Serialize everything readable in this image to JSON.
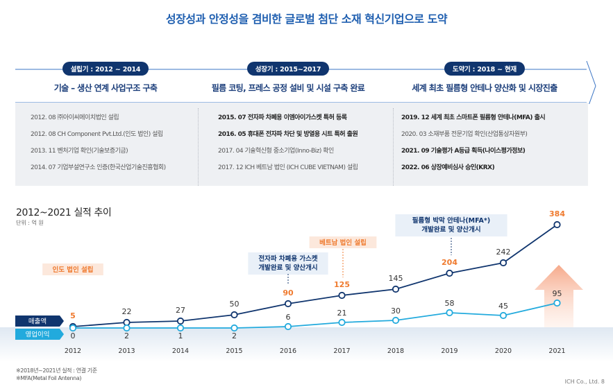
{
  "page_title": "성장성과 안정성을 겸비한 글로벌 첨단 소재 혁신기업으로 도약",
  "phases": [
    {
      "badge": "설립기 : 2012 ~ 2014",
      "subtitle": "기술 – 생산 연계 사업구조 구축",
      "items": [
        {
          "text": "2012. 08 ㈜아이씨에이치법인 설립",
          "bold": false
        },
        {
          "text": "2012. 08 CH Component Pvt.Ltd.(인도 법인) 설립",
          "bold": false
        },
        {
          "text": "2013. 11 벤처기업 확인(기술보증기금)",
          "bold": false
        },
        {
          "text": "2014. 07 기업부설연구소 인증(한국산업기술진흥협회)",
          "bold": false
        }
      ]
    },
    {
      "badge": "성장기 : 2015~2017",
      "subtitle": "필름 코팅, 프레스 공정 설비 및 시설 구축 완료",
      "items": [
        {
          "text": "2015. 07 전자파 차폐용 이엠아이가스켓 특허 등록",
          "bold": true
        },
        {
          "text": "2016. 05 휴대폰 전자파 차단 및 방열용 시트 특허 출원",
          "bold": true
        },
        {
          "text": "2017. 04 기술혁신형 중소기업(Inno-Biz) 확인",
          "bold": false
        },
        {
          "text": "2017. 12 ICH 베트남 법인 (ICH CUBE VIETNAM) 설립",
          "bold": false
        }
      ]
    },
    {
      "badge": "도약기 : 2018 ~ 현재",
      "subtitle": "세계 최초 필름형 안테나 양산화 및 시장진출",
      "items": [
        {
          "text": "2019. 12 세계 최초 스마트폰 필름형 안테나(MFA) 출시",
          "bold": true
        },
        {
          "text": "2020. 03 소재부품 전문기업 확인(산업통상자원부)",
          "bold": false
        },
        {
          "text": "2021. 09 기술평가 A등급 획득(나이스평가정보)",
          "bold": true
        },
        {
          "text": "2022. 06 상장예비심사 승인(KRX)",
          "bold": true
        }
      ]
    }
  ],
  "chart_data": {
    "type": "line",
    "title": "2012~2021 실적 추이",
    "unit": "단위 : 억 원",
    "x": [
      "2012",
      "2013",
      "2014",
      "2015",
      "2016",
      "2017",
      "2018",
      "2019",
      "2020",
      "2021"
    ],
    "series": [
      {
        "name": "매출액",
        "color": "#10356e",
        "values": [
          5,
          22,
          27,
          50,
          90,
          125,
          145,
          204,
          242,
          384
        ],
        "highlight": [
          true,
          false,
          false,
          false,
          true,
          true,
          false,
          true,
          false,
          true
        ]
      },
      {
        "name": "영업이익",
        "color": "#22aadd",
        "values": [
          0,
          2,
          1,
          2,
          6,
          21,
          30,
          58,
          45,
          95
        ],
        "highlight": [
          false,
          false,
          false,
          false,
          false,
          false,
          false,
          false,
          false,
          false
        ]
      }
    ],
    "ylim": [
      0,
      400
    ],
    "annotations": [
      {
        "text": "인도 법인 설립",
        "year": "2012",
        "style": "orange"
      },
      {
        "text": "전자파 차폐용 가스켓\n개발완료 및 양산개시",
        "year": "2016",
        "style": "blue"
      },
      {
        "text": "베트남 법인 설립",
        "year": "2017",
        "style": "orange"
      },
      {
        "text": "필름형 박막 안테나(MFA*)\n개발완료 및 양산개시",
        "year": "2019",
        "style": "blue"
      }
    ]
  },
  "footnotes": [
    "※2018년~2021년 실적 : 연결 기준",
    "※MFA(Metal Foil Antenna)"
  ],
  "footer": "ICH Co., Ltd.  8",
  "colors": {
    "navy": "#10356e",
    "cyan": "#22aadd",
    "orange": "#ef7a2e",
    "title_blue": "#1f5fb0"
  }
}
